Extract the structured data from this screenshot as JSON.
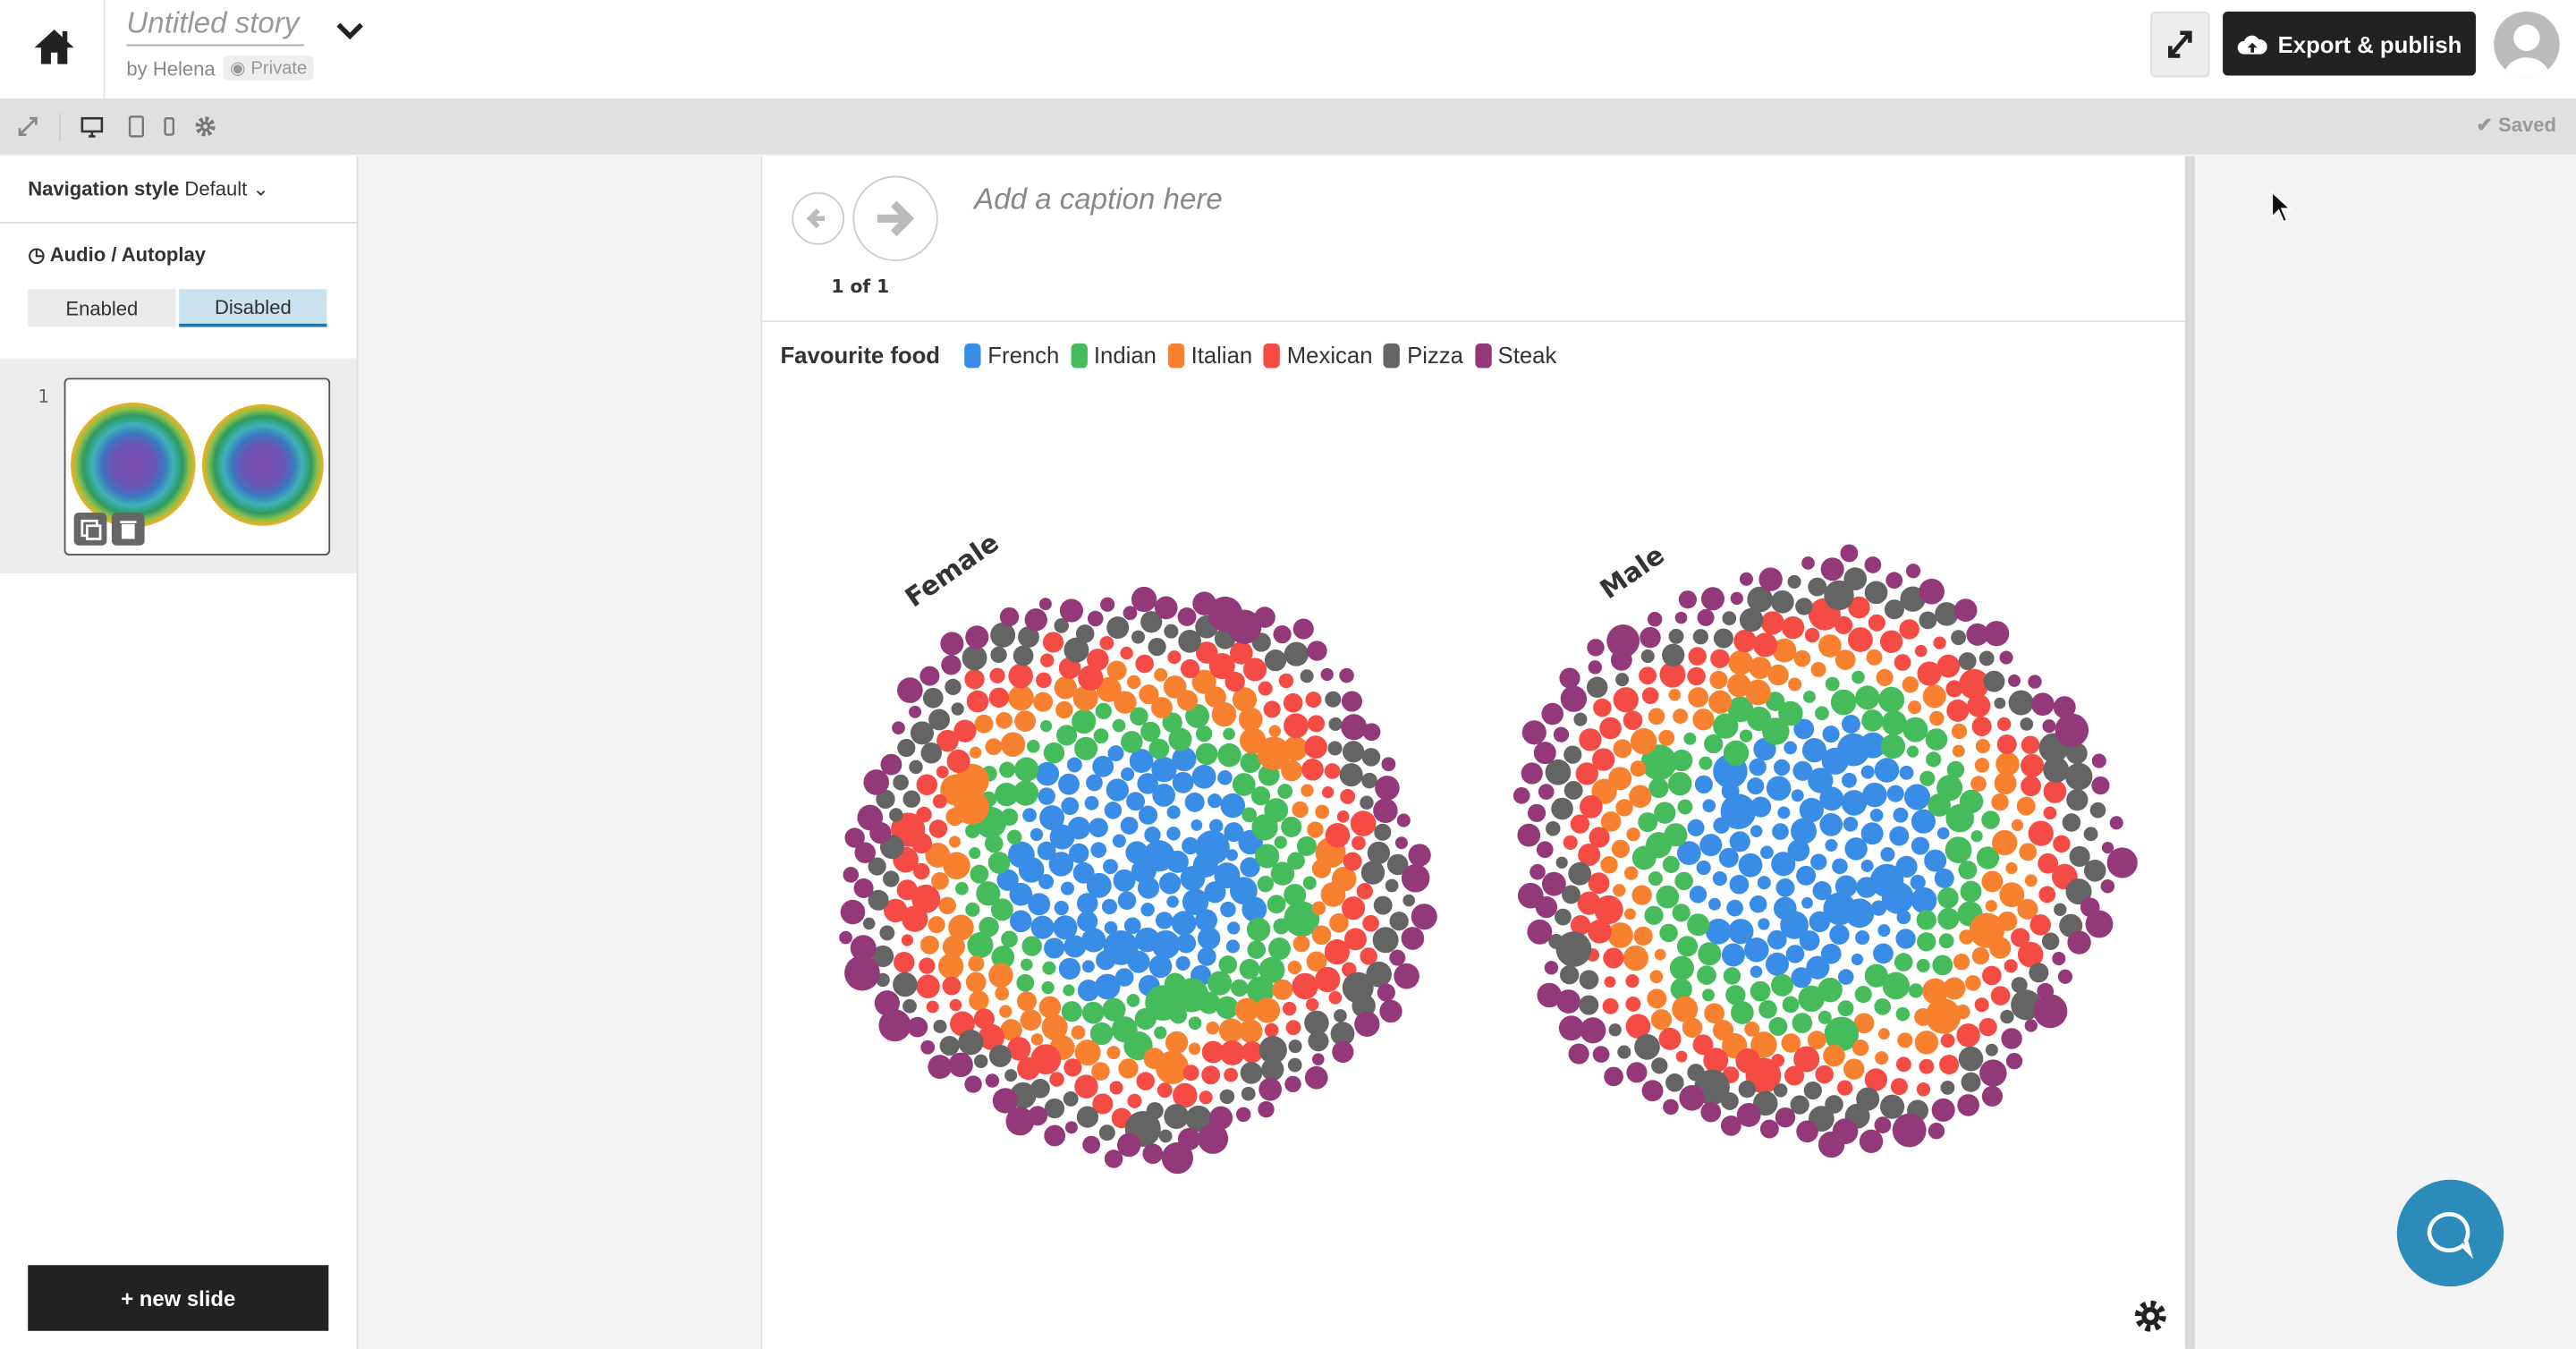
{
  "header": {
    "title": "Untitled story",
    "byline": "by Helena",
    "visibility": "Private",
    "export_label": "Export & publish"
  },
  "toolbar": {
    "saved_label": "Saved",
    "icons": [
      "fullscreen-icon",
      "desktop-icon",
      "tablet-icon",
      "mobile-icon",
      "gear-icon"
    ]
  },
  "sidebar": {
    "nav_style_label": "Navigation style",
    "nav_style_value": "Default",
    "audio_label": "Audio / Autoplay",
    "toggle": {
      "enabled": "Enabled",
      "disabled": "Disabled",
      "selected": "Disabled"
    },
    "slides": [
      {
        "number": "1"
      }
    ],
    "new_slide_label": "+ new slide"
  },
  "slide": {
    "pager": "1 of 1",
    "caption_placeholder": "Add a caption here"
  },
  "colors": {
    "accent": "#2b8bbb",
    "export_bg": "#222222",
    "toggle_selected": "#c9e2ee",
    "toggle_underline": "#1f78b4"
  },
  "chart_data": {
    "type": "packed-bubble",
    "legend_title": "Favourite food",
    "categories": [
      {
        "name": "French",
        "color": "#3a8de6"
      },
      {
        "name": "Indian",
        "color": "#45bb5c"
      },
      {
        "name": "Italian",
        "color": "#f7812f"
      },
      {
        "name": "Mexican",
        "color": "#f44c45"
      },
      {
        "name": "Pizza",
        "color": "#646464"
      },
      {
        "name": "Steak",
        "color": "#93397a"
      }
    ],
    "groups": [
      "Female",
      "Male"
    ],
    "legend_placement": "top-left",
    "layout_note_visible": "categories arranged in concentric rings, French at center to Steak outermost"
  }
}
